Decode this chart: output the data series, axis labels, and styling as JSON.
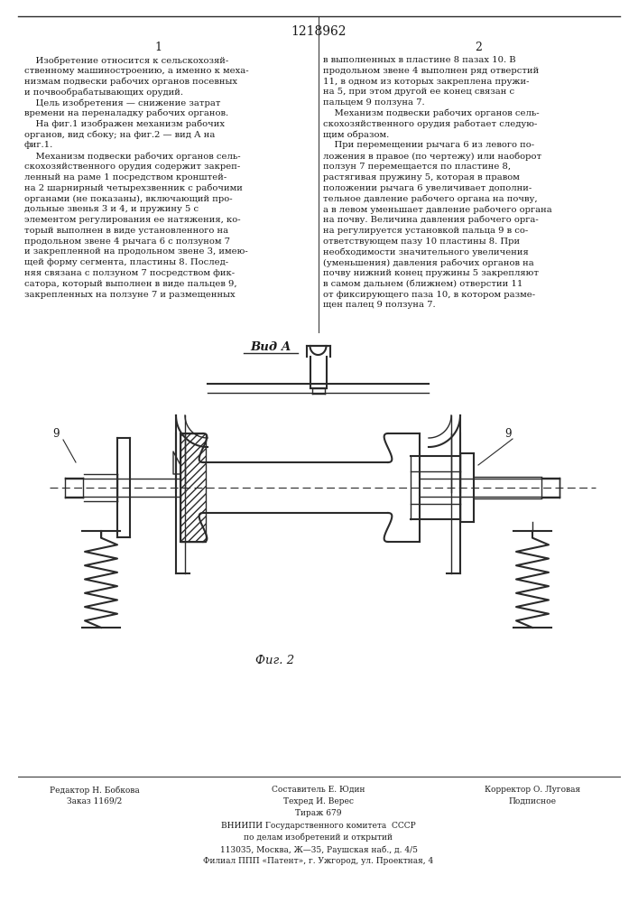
{
  "patent_number": "1218962",
  "col1_header": "1",
  "col2_header": "2",
  "col1_text": [
    "    Изобретение относится к сельскохозяй-",
    "ственному машиностроению, а именно к меха-",
    "низмам подвески рабочих органов посевных",
    "и почвообрабатывающих орудий.",
    "    Цель изобретения — снижение затрат",
    "времени на переналадку рабочих органов.",
    "    На фиг.1 изображен механизм рабочих",
    "органов, вид сбоку; на фиг.2 — вид А на",
    "фиг.1.",
    "    Механизм подвески рабочих органов сель-",
    "скохозяйственного орудия содержит закреп-",
    "ленный на раме 1 посредством кронштей-",
    "на 2 шарнирный четырехзвенник с рабочими",
    "органами (не показаны), включающий про-",
    "дольные звенья 3 и 4, и пружину 5 с",
    "элементом регулирования ее натяжения, ко-",
    "торый выполнен в виде установленного на",
    "продольном звене 4 рычага 6 с ползуном 7",
    "и закрепленной на продольном звене 3, имею-",
    "щей форму сегмента, пластины 8. Послед-",
    "няя связана с ползуном 7 посредством фик-",
    "сатора, который выполнен в виде пальцев 9,",
    "закрепленных на ползуне 7 и размещенных"
  ],
  "col2_text": [
    "в выполненных в пластине 8 пазах 10. В",
    "продольном звене 4 выполнен ряд отверстий",
    "11, в одном из которых закреплена пружи-",
    "на 5, при этом другой ее конец связан с",
    "пальцем 9 ползуна 7.",
    "    Механизм подвески рабочих органов сель-",
    "скохозяйственного орудия работает следую-",
    "щим образом.",
    "    При перемещении рычага 6 из левого по-",
    "ложения в правое (по чертежу) или наоборот",
    "ползун 7 перемещается по пластине 8,",
    "растягивая пружину 5, которая в правом",
    "положении рычага 6 увеличивает дополни-",
    "тельное давление рабочего органа на почву,",
    "а в левом уменьшает давление рабочего органа",
    "на почву. Величина давления рабочего орга-",
    "на регулируется установкой пальца 9 в со-",
    "ответствующем пазу 10 пластины 8. При",
    "необходимости значительного увеличения",
    "(уменьшения) давления рабочих органов на",
    "почву нижний конец пружины 5 закрепляют",
    "в самом дальнем (ближнем) отверстии 11",
    "от фиксирующего паза 10, в котором разме-",
    "щен палец 9 ползуна 7."
  ],
  "vid_a_label": "Вид А",
  "fig2_label": "Фиг. 2",
  "footer_left_line1": "Редактор Н. Бобкова",
  "footer_left_line2": "Заказ 1169/2",
  "footer_center_line1": "Составитель Е. Юдин",
  "footer_center_line2": "Техред И. Верес",
  "footer_center_line3": "Тираж 679",
  "footer_right_line1": "Корректор О. Луговая",
  "footer_right_line2": "Подписное",
  "footer_vniipи": "ВНИИПИ Государственного комитета  СССР",
  "footer_address1": "по делам изобретений и открытий",
  "footer_address2": "113035, Москва, Ж—35, Раушская наб., д. 4/5",
  "footer_address3": "Филиал ППП «Патент», г. Ужгород, ул. Проектная, 4",
  "bg_color": "#ffffff",
  "text_color": "#1a1a1a",
  "line_color": "#2a2a2a"
}
